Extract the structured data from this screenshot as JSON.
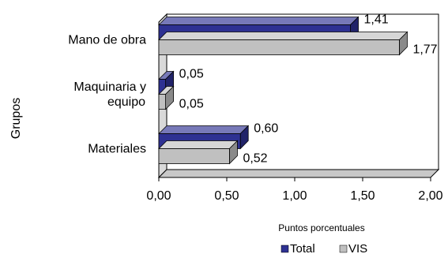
{
  "chart_data": {
    "type": "bar",
    "orientation": "horizontal",
    "three_d": true,
    "categories": [
      "Mano de obra",
      "Maquinaria y equipo",
      "Materiales"
    ],
    "category_lines": [
      [
        "Mano de obra"
      ],
      [
        "Maquinaria y",
        "equipo"
      ],
      [
        "Materiales"
      ]
    ],
    "series": [
      {
        "name": "Total",
        "values": [
          1.41,
          0.05,
          0.6
        ],
        "labels": [
          "1,41",
          "0,05",
          "0,60"
        ],
        "color": "#2e3192"
      },
      {
        "name": "VIS",
        "values": [
          1.77,
          0.05,
          0.52
        ],
        "labels": [
          "1,77",
          "0,05",
          "0,52"
        ],
        "color": "#c0c0c0"
      }
    ],
    "xlabel": "Puntos porcentuales",
    "ylabel": "Grupos",
    "xlim": [
      0,
      2
    ],
    "xticks": [
      0,
      0.5,
      1.0,
      1.5,
      2.0
    ],
    "xtick_labels": [
      "0,00",
      "0,50",
      "1,00",
      "1,50",
      "2,00"
    ],
    "grid": false,
    "legend_position": "bottom"
  }
}
